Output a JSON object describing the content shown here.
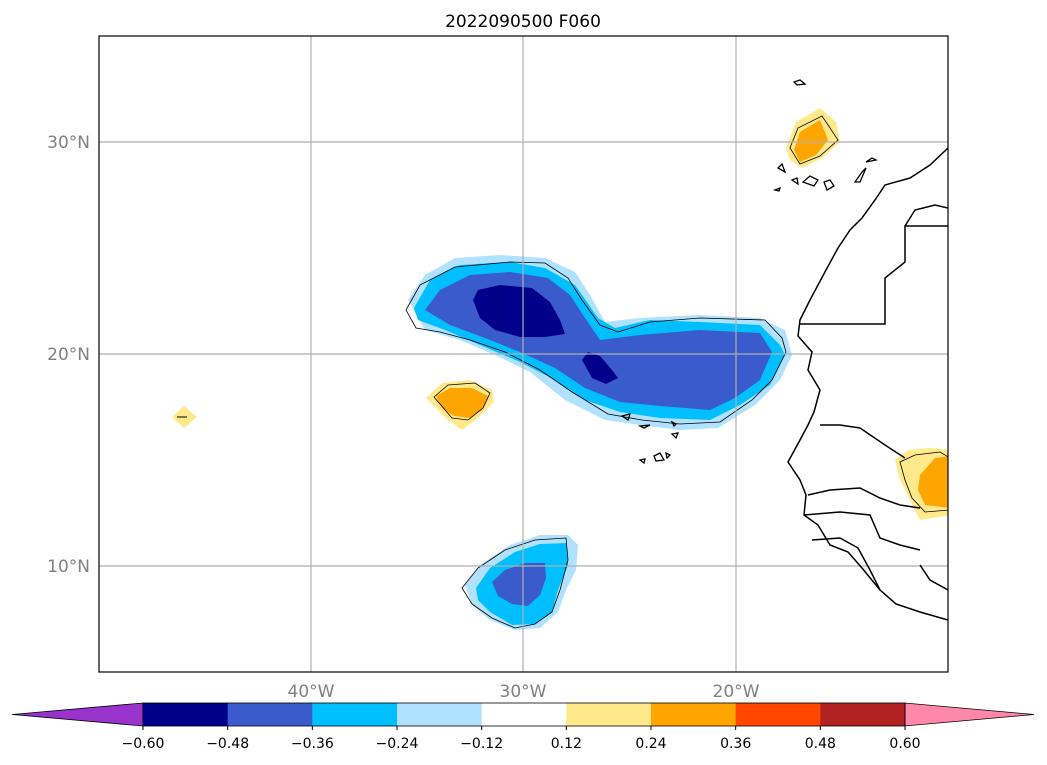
{
  "title": "2022090500 F060",
  "map": {
    "projection": "PlateCarree",
    "lon_range": [
      -50,
      -10
    ],
    "lat_range": [
      5,
      35
    ],
    "gridlines": true,
    "x_ticks": [
      {
        "value": -40,
        "label": "40°W"
      },
      {
        "value": -30,
        "label": "30°W"
      },
      {
        "value": -20,
        "label": "20°W"
      }
    ],
    "y_ticks": [
      {
        "value": 30,
        "label": "30°N"
      },
      {
        "value": 20,
        "label": "20°N"
      },
      {
        "value": 10,
        "label": "10°N"
      }
    ],
    "coastlines": true,
    "borders": true
  },
  "colorbar": {
    "orientation": "horizontal",
    "extend": "both",
    "levels": [
      -0.6,
      -0.48,
      -0.36,
      -0.24,
      -0.12,
      0.12,
      0.24,
      0.36,
      0.48,
      0.6
    ],
    "tick_labels": [
      "−0.60",
      "−0.48",
      "−0.36",
      "−0.24",
      "−0.12",
      "0.12",
      "0.24",
      "0.36",
      "0.48",
      "0.60"
    ],
    "colors": [
      "#9933cc",
      "#00008b",
      "#3a5bcc",
      "#00bfff",
      "#b0e2ff",
      "#ffffff",
      "#ffe98a",
      "#ffa500",
      "#ff4500",
      "#b22222",
      "#ff88aa"
    ]
  },
  "features": [
    {
      "name": "saharan-anomaly-negative",
      "min_level": -0.6,
      "center": [
        -29,
        22
      ]
    },
    {
      "name": "anomaly-negative-20n",
      "min_level": -0.48,
      "center": [
        -25,
        19
      ]
    },
    {
      "name": "anomaly-negative-10n",
      "min_level": -0.48,
      "center": [
        -30,
        9
      ]
    },
    {
      "name": "anomaly-positive-18n",
      "max_level": 0.36,
      "center": [
        -33,
        18
      ]
    },
    {
      "name": "anomaly-positive-canaries",
      "max_level": 0.36,
      "center": [
        -16,
        30
      ]
    },
    {
      "name": "anomaly-positive-africa",
      "max_level": 0.36,
      "center": [
        -10.5,
        14.5
      ]
    },
    {
      "name": "anomaly-positive-small",
      "max_level": 0.24,
      "center": [
        -46,
        17
      ]
    }
  ]
}
